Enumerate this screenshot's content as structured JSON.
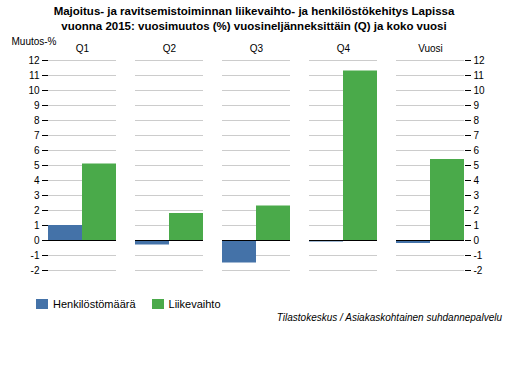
{
  "chart_data": {
    "type": "bar",
    "title": "Majoitus- ja ravitsemistoiminnan liikevaihto- ja henkilöstökehitys Lapissa",
    "subtitle": "vuonna 2015: vuosimuutos (%) vuosineljänneksittäin (Q) ja koko vuosi",
    "y_label": "Muutos-%",
    "source": "Tilastokeskus / Asiakaskohtainen suhdannepalvelu",
    "categories": [
      "Q1",
      "Q2",
      "Q3",
      "Q4",
      "Vuosi"
    ],
    "series": [
      {
        "name": "Henkilöstömäärä",
        "color": "#4472a8",
        "values": [
          1.0,
          -0.3,
          -1.5,
          -0.1,
          -0.2
        ]
      },
      {
        "name": "Liikevaihto",
        "color": "#4aaa4a",
        "values": [
          5.1,
          1.8,
          2.3,
          11.3,
          5.4
        ]
      }
    ],
    "ylim": [
      -2,
      12
    ],
    "yticks": [
      -2,
      -1,
      0,
      1,
      2,
      3,
      4,
      5,
      6,
      7,
      8,
      9,
      10,
      11,
      12
    ],
    "y2lim": [
      -2,
      12
    ],
    "y2ticks": [
      -2,
      -1,
      0,
      1,
      2,
      3,
      4,
      5,
      6,
      7,
      8,
      9,
      10,
      11,
      12
    ],
    "grid": true,
    "legend": "lower left"
  }
}
